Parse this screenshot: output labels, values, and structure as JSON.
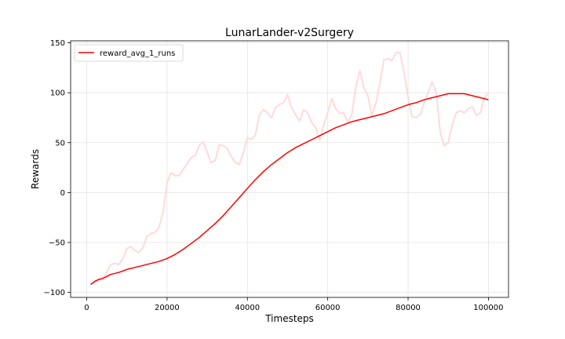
{
  "chart_data": {
    "type": "line",
    "title": "LunarLander-v2Surgery",
    "xlabel": "Timesteps",
    "ylabel": "Rewards",
    "xlim": [
      -4000,
      105000
    ],
    "ylim": [
      -105,
      152
    ],
    "xticks": [
      0,
      20000,
      40000,
      60000,
      80000,
      100000
    ],
    "xtick_labels": [
      "0",
      "20000",
      "40000",
      "60000",
      "80000",
      "100000"
    ],
    "yticks": [
      -100,
      -50,
      0,
      50,
      100,
      150
    ],
    "ytick_labels": [
      "−100",
      "−50",
      "0",
      "50",
      "100",
      "150"
    ],
    "grid": true,
    "legend_position": "upper-left",
    "line_color": "#ff0000",
    "raw_color": "#ffdada",
    "series": [
      {
        "name": "reward_avg_1_runs",
        "x": [
          1000,
          2000,
          3000,
          4000,
          5000,
          6000,
          8000,
          10000,
          12000,
          14000,
          16000,
          18000,
          20000,
          22000,
          24000,
          26000,
          28000,
          30000,
          32000,
          34000,
          36000,
          38000,
          40000,
          42000,
          44000,
          46000,
          48000,
          50000,
          52000,
          54000,
          56000,
          58000,
          60000,
          62000,
          64000,
          66000,
          68000,
          70000,
          72000,
          74000,
          76000,
          78000,
          80000,
          82000,
          84000,
          86000,
          88000,
          90000,
          92000,
          94000,
          96000,
          98000,
          100000
        ],
        "values": [
          -92,
          -89,
          -87,
          -86,
          -84,
          -82,
          -80,
          -77,
          -75,
          -73,
          -71,
          -69,
          -66,
          -62,
          -57,
          -51,
          -45,
          -38,
          -31,
          -23,
          -14,
          -5,
          4,
          13,
          21,
          28,
          34,
          40,
          45,
          49,
          53,
          57,
          61,
          65,
          68,
          71,
          73,
          75,
          77,
          79,
          82,
          85,
          88,
          90,
          93,
          95,
          97,
          99,
          99,
          99,
          97,
          95,
          93
        ]
      }
    ],
    "raw_series": {
      "x": [
        1000,
        2000,
        3000,
        4000,
        5000,
        6000,
        7000,
        8000,
        9000,
        10000,
        11000,
        12000,
        13000,
        14000,
        15000,
        16000,
        17000,
        18000,
        19000,
        20000,
        21000,
        22000,
        23000,
        24000,
        25000,
        26000,
        27000,
        28000,
        29000,
        30000,
        31000,
        32000,
        33000,
        34000,
        35000,
        36000,
        37000,
        38000,
        39000,
        40000,
        41000,
        42000,
        43000,
        44000,
        45000,
        46000,
        47000,
        48000,
        49000,
        50000,
        51000,
        52000,
        53000,
        54000,
        55000,
        56000,
        57000,
        58000,
        59000,
        60000,
        61000,
        62000,
        63000,
        64000,
        65000,
        66000,
        67000,
        68000,
        69000,
        70000,
        71000,
        72000,
        73000,
        74000,
        75000,
        76000,
        77000,
        78000,
        79000,
        80000,
        81000,
        82000,
        83000,
        84000,
        85000,
        86000,
        87000,
        88000,
        89000,
        90000,
        91000,
        92000,
        93000,
        94000,
        95000,
        96000,
        97000,
        98000,
        99000,
        100000
      ],
      "values": [
        -92,
        -90,
        -88,
        -86,
        -80,
        -72,
        -71,
        -72,
        -66,
        -56,
        -54,
        -58,
        -60,
        -55,
        -44,
        -41,
        -40,
        -35,
        -20,
        10,
        20,
        17,
        17,
        23,
        29,
        35,
        37,
        47,
        51,
        40,
        30,
        32,
        48,
        47,
        44,
        36,
        30,
        28,
        40,
        55,
        53,
        58,
        78,
        83,
        80,
        75,
        85,
        88,
        90,
        98,
        85,
        78,
        72,
        83,
        80,
        70,
        65,
        52,
        68,
        80,
        94,
        84,
        79,
        80,
        70,
        78,
        106,
        122,
        105,
        97,
        77,
        90,
        110,
        133,
        134,
        132,
        140,
        140,
        120,
        96,
        76,
        75,
        78,
        90,
        100,
        111,
        100,
        60,
        47,
        50,
        68,
        80,
        82,
        80,
        84,
        86,
        77,
        80,
        95,
        100
      ]
    }
  }
}
